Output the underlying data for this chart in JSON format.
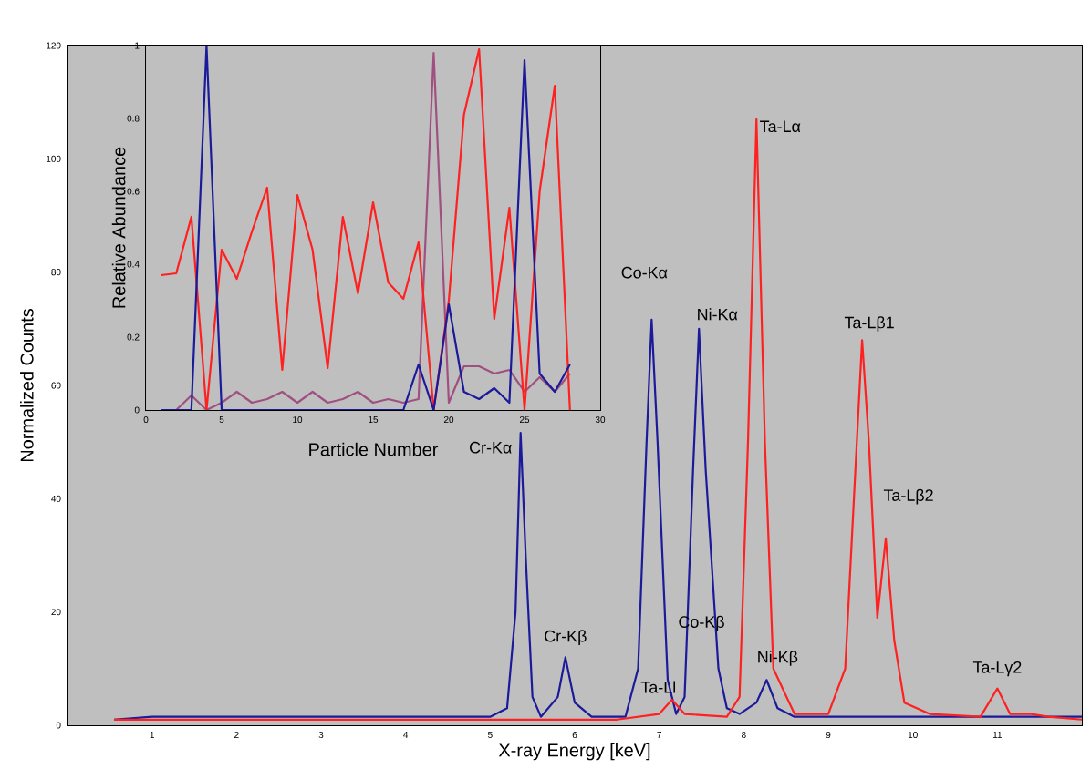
{
  "chart_data": [
    {
      "type": "line",
      "xlabel": "X-ray Energy [keV]",
      "ylabel": "Normalized Counts",
      "xlim": [
        0,
        12
      ],
      "ylim": [
        0,
        120
      ],
      "xticks": [
        1,
        2,
        3,
        4,
        5,
        6,
        7,
        8,
        9,
        10,
        11
      ],
      "yticks": [
        0,
        20,
        40,
        60,
        80,
        100,
        120
      ],
      "marker": "none",
      "line_style": "solid",
      "series": [
        {
          "color": "#1a1a9a",
          "x": [
            0.55,
            1,
            2,
            3,
            4,
            5,
            5.2,
            5.3,
            5.36,
            5.42,
            5.5,
            5.6,
            5.8,
            5.89,
            6.0,
            6.2,
            6.6,
            6.75,
            6.85,
            6.91,
            6.98,
            7.1,
            7.2,
            7.3,
            7.4,
            7.47,
            7.55,
            7.7,
            7.8,
            7.95,
            8.15,
            8.27,
            8.4,
            8.6,
            9,
            10,
            11,
            12
          ],
          "values": [
            1,
            1.5,
            1.5,
            1.5,
            1.5,
            1.5,
            3,
            20,
            51.6,
            30,
            5,
            1.5,
            5,
            12,
            4,
            1.5,
            1.5,
            10,
            50,
            71.6,
            50,
            8,
            2,
            5,
            45,
            70,
            45,
            10,
            3,
            2,
            4,
            8,
            3,
            1.5,
            1.5,
            1.5,
            1.5,
            1.5
          ]
        },
        {
          "color": "#ff2020",
          "x": [
            0.55,
            3,
            5,
            6.5,
            7.0,
            7.15,
            7.3,
            7.8,
            7.95,
            8.05,
            8.15,
            8.25,
            8.35,
            8.6,
            9.0,
            9.2,
            9.32,
            9.4,
            9.48,
            9.58,
            9.68,
            9.78,
            9.9,
            10.2,
            10.8,
            11.0,
            11.15,
            11.4,
            11.6,
            12
          ],
          "values": [
            1,
            1,
            1,
            1,
            2,
            4.5,
            2,
            1.5,
            5,
            50,
            107,
            50,
            10,
            2,
            2,
            10,
            45,
            68,
            50,
            19,
            33,
            15,
            4,
            2,
            1.5,
            6.5,
            2,
            2,
            1.5,
            1
          ]
        }
      ],
      "annotations": [
        {
          "text": "Cr-Kα",
          "x": 5.36,
          "y": 51.6
        },
        {
          "text": "Cr-Kβ",
          "x": 5.89,
          "y": 12
        },
        {
          "text": "Co-Kα",
          "x": 6.91,
          "y": 71.6
        },
        {
          "text": "Ni-Kα",
          "x": 7.47,
          "y": 70
        },
        {
          "text": "Ta-Ll",
          "x": 7.15,
          "y": 4.5
        },
        "Co-Kβ",
        {
          "text": "Ni-Kβ",
          "x": 8.27,
          "y": 8
        },
        {
          "text": "Ta-Lα",
          "x": 8.15,
          "y": 107
        },
        {
          "text": "Ta-Lβ1",
          "x": 9.4,
          "y": 68
        },
        {
          "text": "Ta-Lβ2",
          "x": 9.68,
          "y": 33
        },
        {
          "text": "Ta-Lγ2",
          "x": 11.0,
          "y": 6.5
        }
      ]
    },
    {
      "type": "line",
      "xlabel": "Particle Number",
      "ylabel": "Relative Abundance",
      "xlim": [
        0,
        30
      ],
      "ylim": [
        0,
        1
      ],
      "xticks": [
        0,
        5,
        10,
        15,
        20,
        25,
        30
      ],
      "yticks": [
        0,
        0.2,
        0.4,
        0.6,
        0.8,
        1
      ],
      "marker": "none",
      "line_style": "solid",
      "x": [
        1,
        2,
        3,
        4,
        5,
        6,
        7,
        8,
        9,
        10,
        11,
        12,
        13,
        14,
        15,
        16,
        17,
        18,
        19,
        20,
        21,
        22,
        23,
        24,
        25,
        26,
        27,
        28
      ],
      "series": [
        {
          "color": "#a05080",
          "values": [
            0,
            0,
            0.04,
            0,
            0.02,
            0.05,
            0.02,
            0.03,
            0.05,
            0.02,
            0.05,
            0.02,
            0.03,
            0.05,
            0.02,
            0.03,
            0.02,
            0.03,
            0.98,
            0.02,
            0.12,
            0.12,
            0.1,
            0.11,
            0.05,
            0.09,
            0.05,
            0.1
          ]
        },
        {
          "color": "#ff2020",
          "values": [
            0.37,
            0.375,
            0.53,
            0,
            0.44,
            0.36,
            0.49,
            0.61,
            0.11,
            0.59,
            0.44,
            0.115,
            0.53,
            0.32,
            0.57,
            0.35,
            0.305,
            0.46,
            0,
            0.3,
            0.81,
            0.99,
            0.25,
            0.555,
            0,
            0.6,
            0.89,
            0
          ]
        },
        {
          "color": "#1a1a9a",
          "values": [
            0,
            0,
            0,
            1,
            0,
            0,
            0,
            0,
            0,
            0,
            0,
            0,
            0,
            0,
            0,
            0,
            0,
            0.125,
            0,
            0.29,
            0.05,
            0.03,
            0.06,
            0.02,
            0.96,
            0.1,
            0.05,
            0.125
          ]
        }
      ]
    }
  ]
}
